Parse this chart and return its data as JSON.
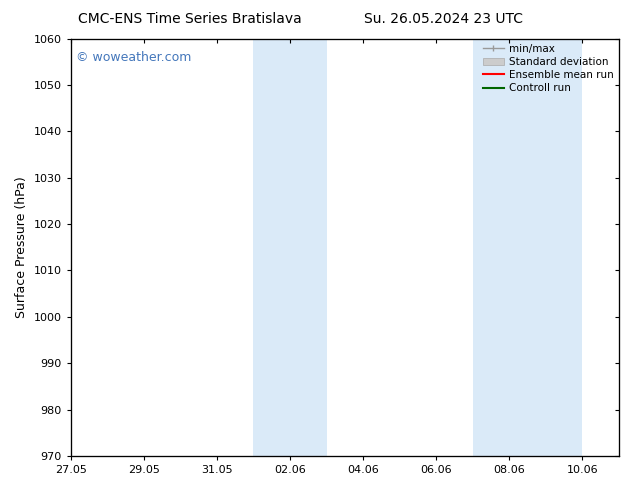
{
  "title_left": "CMC-ENS Time Series Bratislava",
  "title_right": "Su. 26.05.2024 23 UTC",
  "ylabel": "Surface Pressure (hPa)",
  "ylim": [
    970,
    1060
  ],
  "yticks": [
    970,
    980,
    990,
    1000,
    1010,
    1020,
    1030,
    1040,
    1050,
    1060
  ],
  "xtick_labels": [
    "27.05",
    "29.05",
    "31.05",
    "02.06",
    "04.06",
    "06.06",
    "08.06",
    "10.06"
  ],
  "xtick_positions": [
    0,
    2,
    4,
    6,
    8,
    10,
    12,
    14
  ],
  "xlim": [
    0,
    15
  ],
  "shaded_bands": [
    {
      "x_start": 5,
      "x_end": 7
    },
    {
      "x_start": 11,
      "x_end": 14
    }
  ],
  "shaded_color": "#daeaf8",
  "watermark_text": "© woweather.com",
  "watermark_color": "#4477bb",
  "bg_color": "#ffffff",
  "title_fontsize": 10,
  "axis_label_fontsize": 9,
  "tick_fontsize": 8,
  "legend_fontsize": 7.5
}
